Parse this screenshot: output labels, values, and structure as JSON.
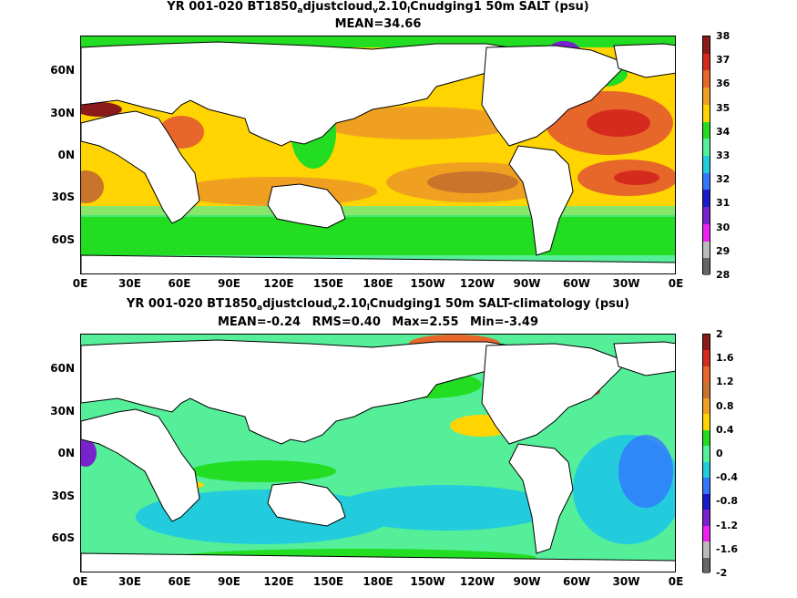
{
  "panels": [
    {
      "title_parts": [
        "YR 001-020 BT1850",
        "a",
        "djustcloud",
        "v",
        "2.10",
        "l",
        "Cnudging1 50m SALT (psu)"
      ],
      "stats": [
        "MEAN=34.66"
      ],
      "colorbar": {
        "labels": [
          "38",
          "37",
          "36",
          "35",
          "34",
          "33",
          "32",
          "31",
          "30",
          "29",
          "28"
        ],
        "colors": [
          "#8b1a1a",
          "#d42b1e",
          "#e7662a",
          "#f0a020",
          "#ffd400",
          "#22dd22",
          "#55ee99",
          "#22ccdd",
          "#3377ff",
          "#1a1acc",
          "#7722cc",
          "#ee22ee",
          "#bbbbbb",
          "#666666"
        ]
      }
    },
    {
      "title_parts": [
        "YR 001-020 BT1850",
        "a",
        "djustcloud",
        "v",
        "2.10",
        "l",
        "Cnudging1 50m SALT-climatology (psu)"
      ],
      "stats": [
        "MEAN=-0.24",
        "RMS=0.40",
        "Max=2.55",
        "Min=-3.49"
      ],
      "colorbar": {
        "labels": [
          "2",
          "1.6",
          "1.2",
          "0.8",
          "0.4",
          "0",
          "-0.4",
          "-0.8",
          "-1.2",
          "-1.6",
          "-2"
        ],
        "colors": [
          "#8b1a1a",
          "#d42b1e",
          "#e7662a",
          "#c8742a",
          "#f0a020",
          "#ffd400",
          "#22dd22",
          "#55ee99",
          "#22ccdd",
          "#3377ff",
          "#1a1acc",
          "#7722cc",
          "#ee22ee",
          "#bbbbbb",
          "#666666"
        ]
      }
    }
  ],
  "axes": {
    "x_ticks": [
      "0E",
      "30E",
      "60E",
      "90E",
      "120E",
      "150E",
      "180E",
      "150W",
      "120W",
      "90W",
      "60W",
      "30W",
      "0E"
    ],
    "y_ticks": [
      "60N",
      "30N",
      "0N",
      "30S",
      "60S"
    ]
  },
  "colors": {
    "land": "#ffffff",
    "coast": "#000000"
  }
}
